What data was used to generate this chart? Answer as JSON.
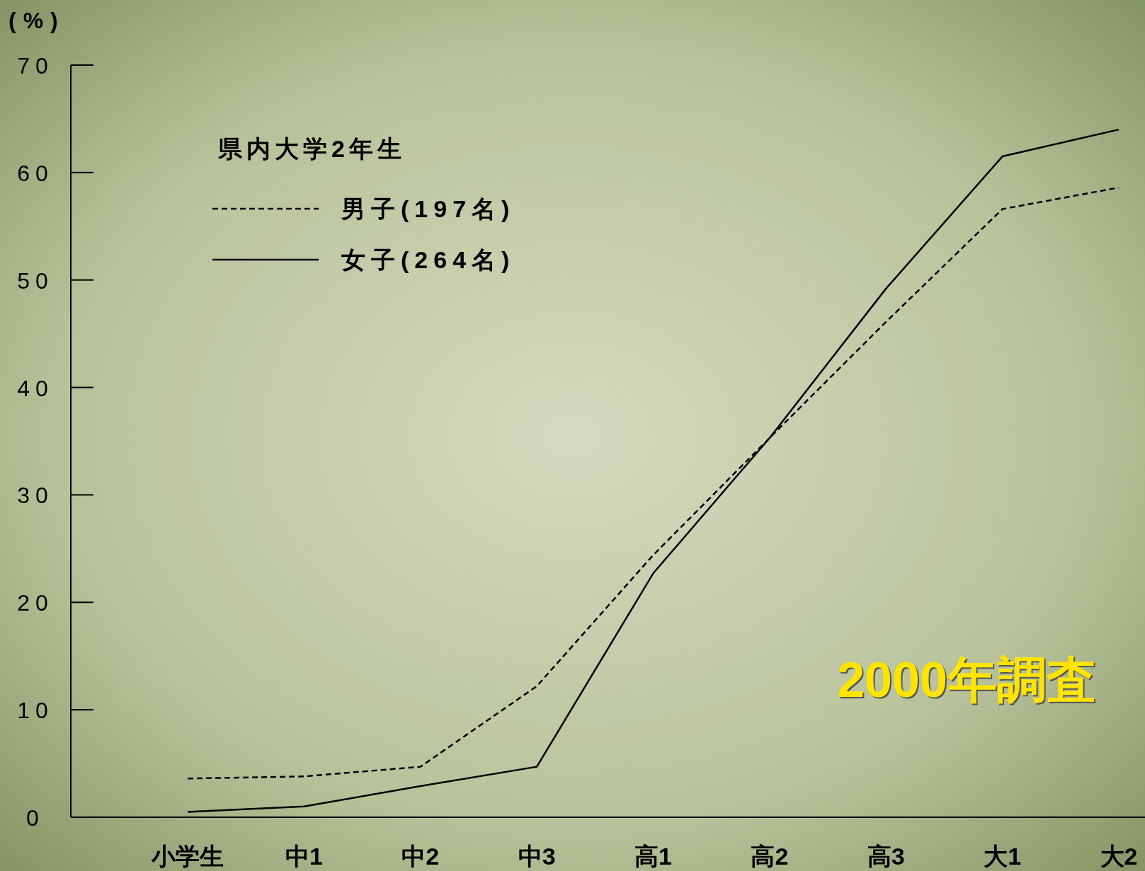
{
  "chart_data": {
    "type": "line",
    "ylabel": "(%)",
    "legend_title": "県内大学2年生",
    "legend": "top left",
    "categories": [
      "小学生",
      "中1",
      "中2",
      "中3",
      "高1",
      "高2",
      "高3",
      "大1",
      "大2"
    ],
    "ylim": [
      0,
      70
    ],
    "yticks": [
      0,
      10,
      20,
      30,
      40,
      50,
      60,
      70
    ],
    "series": [
      {
        "name": "男子(197名)",
        "color": "#000000",
        "line_style": "dashed",
        "values": [
          3.6,
          3.8,
          4.7,
          12.2,
          24.4,
          35.3,
          46.1,
          56.6,
          58.6
        ]
      },
      {
        "name": "女子(264名)",
        "color": "#000000",
        "line_style": "solid",
        "values": [
          0.5,
          1.0,
          2.9,
          4.7,
          22.7,
          35.3,
          49.2,
          61.5,
          64.0
        ]
      }
    ],
    "annotations": [
      "2000年調査"
    ]
  }
}
